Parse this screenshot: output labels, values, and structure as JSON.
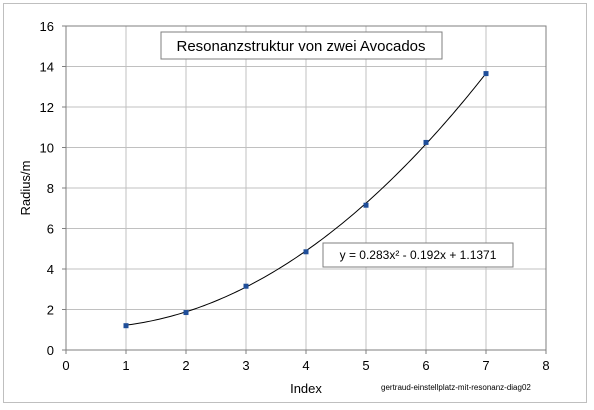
{
  "chart_data": {
    "type": "scatter",
    "title": "Resonanzstruktur von zwei Avocados",
    "xlabel": "Index",
    "ylabel": "Radius/m",
    "xlim": [
      0,
      8
    ],
    "ylim": [
      0,
      16
    ],
    "x_ticks": [
      "0",
      "1",
      "2",
      "3",
      "4",
      "5",
      "6",
      "7",
      "8"
    ],
    "y_ticks": [
      "0",
      "2",
      "4",
      "6",
      "8",
      "10",
      "12",
      "14",
      "16"
    ],
    "grid": true,
    "points": [
      {
        "x": 1,
        "y": 1.2
      },
      {
        "x": 2,
        "y": 1.85
      },
      {
        "x": 3,
        "y": 3.15
      },
      {
        "x": 4,
        "y": 4.85
      },
      {
        "x": 5,
        "y": 7.15
      },
      {
        "x": 6,
        "y": 10.25
      },
      {
        "x": 7,
        "y": 13.65
      }
    ],
    "trendline": {
      "kind": "polynomial",
      "coefficients": [
        0.283,
        -0.192,
        1.1371
      ],
      "x_range": [
        1,
        7
      ],
      "label": "y = 0.283x² - 0.192x + 1.1371"
    },
    "colors": {
      "marker": "#1f4e99",
      "curve": "#000000",
      "grid": "#c0c0c0"
    }
  },
  "footnote": "gertraud-einstellplatz-mit-resonanz-diag02"
}
